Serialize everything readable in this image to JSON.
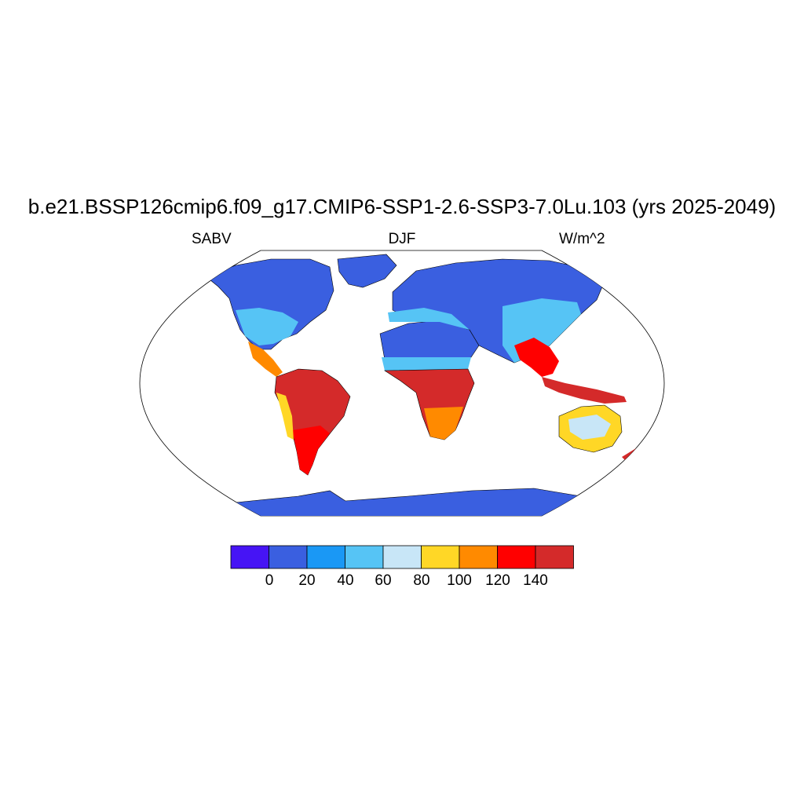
{
  "title": "b.e21.BSSP126cmip6.f09_g17.CMIP6-SSP1-2.6-SSP3-7.0Lu.103 (yrs 2025-2049)",
  "left_label": "SABV",
  "center_label": "DJF",
  "right_label": "W/m^2",
  "colorbar": {
    "colors": [
      "#4614f5",
      "#3a5fe0",
      "#1a98f5",
      "#56c4f5",
      "#c8e6f7",
      "#ffd726",
      "#ff8a00",
      "#ff0000",
      "#d42a2a"
    ],
    "tick_labels": [
      "0",
      "20",
      "40",
      "60",
      "80",
      "100",
      "120",
      "140"
    ]
  },
  "colors": {
    "ocean": "#ffffff",
    "outline": "#000000"
  }
}
